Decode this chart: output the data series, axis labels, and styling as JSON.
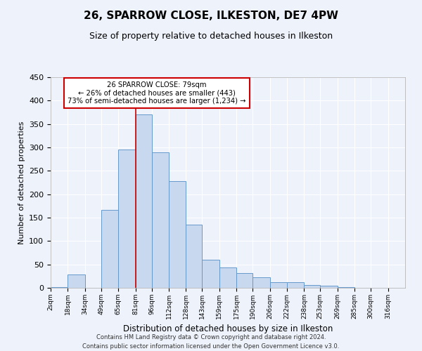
{
  "title": "26, SPARROW CLOSE, ILKESTON, DE7 4PW",
  "subtitle": "Size of property relative to detached houses in Ilkeston",
  "xlabel": "Distribution of detached houses by size in Ilkeston",
  "ylabel": "Number of detached properties",
  "bar_color": "#c8d8ee",
  "bar_edge_color": "#6699cc",
  "background_color": "#eef2fb",
  "grid_color": "#ffffff",
  "annotation_box_color": "#cc0000",
  "annotation_line_color": "#cc0000",
  "property_line_x": 81,
  "categories": [
    "2sqm",
    "18sqm",
    "34sqm",
    "49sqm",
    "65sqm",
    "81sqm",
    "96sqm",
    "112sqm",
    "128sqm",
    "143sqm",
    "159sqm",
    "175sqm",
    "190sqm",
    "206sqm",
    "222sqm",
    "238sqm",
    "253sqm",
    "269sqm",
    "285sqm",
    "300sqm",
    "316sqm"
  ],
  "bin_edges": [
    2,
    18,
    34,
    49,
    65,
    81,
    96,
    112,
    128,
    143,
    159,
    175,
    190,
    206,
    222,
    238,
    253,
    269,
    285,
    300,
    316,
    332
  ],
  "values": [
    2,
    28,
    0,
    166,
    295,
    370,
    290,
    228,
    135,
    60,
    43,
    31,
    22,
    12,
    12,
    6,
    4,
    2,
    0,
    0,
    0
  ],
  "ylim": [
    0,
    450
  ],
  "yticks": [
    0,
    50,
    100,
    150,
    200,
    250,
    300,
    350,
    400,
    450
  ],
  "annotation_text_line1": "26 SPARROW CLOSE: 79sqm",
  "annotation_text_line2": "← 26% of detached houses are smaller (443)",
  "annotation_text_line3": "73% of semi-detached houses are larger (1,234) →",
  "footer_line1": "Contains HM Land Registry data © Crown copyright and database right 2024.",
  "footer_line2": "Contains public sector information licensed under the Open Government Licence v3.0."
}
